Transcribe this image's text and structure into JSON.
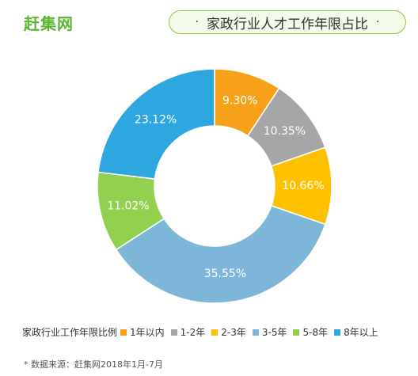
{
  "brand": {
    "logo_text": "赶集网"
  },
  "header": {
    "title": "家政行业人才工作年限占比",
    "left_dot": "·",
    "right_dot": "·"
  },
  "chart_data": {
    "type": "pie",
    "donut": true,
    "title": "家政行业人才工作年限占比",
    "legend_title": "家政行业工作年限比例",
    "legend_position": "bottom",
    "categories": [
      "1年以内",
      "1-2年",
      "2-3年",
      "3-5年",
      "5-8年",
      "8年以上"
    ],
    "values": [
      9.3,
      10.35,
      10.66,
      35.55,
      11.02,
      23.12
    ],
    "labels": [
      "9.30%",
      "10.35%",
      "10.66%",
      "35.55%",
      "11.02%",
      "23.12%"
    ],
    "colors": [
      "#f7a11a",
      "#a6a6a6",
      "#ffc000",
      "#7eb6da",
      "#92d050",
      "#2ea7e0"
    ]
  },
  "footer": {
    "source": "* 数据来源：赶集网2018年1月-7月"
  }
}
